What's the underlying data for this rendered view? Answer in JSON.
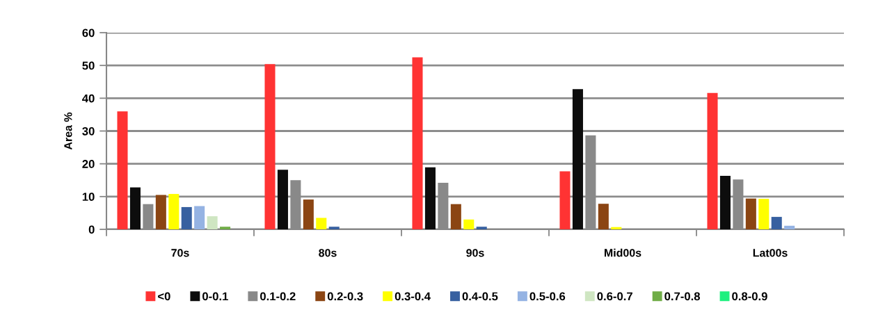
{
  "chart_data": {
    "type": "bar",
    "ylabel": "Area %",
    "categories": [
      "70s",
      "80s",
      "90s",
      "Mid00s",
      "Lat00s"
    ],
    "series": [
      {
        "name": "<0",
        "color": "#ff3333",
        "values": [
          36,
          50.4,
          52.5,
          17.7,
          41.6
        ]
      },
      {
        "name": "0-0.1",
        "color": "#0d0d0d",
        "values": [
          12.8,
          18.2,
          18.9,
          42.8,
          16.3
        ]
      },
      {
        "name": "0.1-0.2",
        "color": "#898989",
        "values": [
          7.7,
          15,
          14.2,
          28.7,
          15.2
        ]
      },
      {
        "name": "0.2-0.3",
        "color": "#8b4513",
        "values": [
          10.5,
          9.1,
          7.7,
          7.8,
          9.4
        ]
      },
      {
        "name": "0.3-0.4",
        "color": "#ffff00",
        "values": [
          10.8,
          3.5,
          3,
          0.7,
          9.3
        ]
      },
      {
        "name": "0.4-0.5",
        "color": "#3760a0",
        "values": [
          6.8,
          0.8,
          0.8,
          0,
          3.8
        ]
      },
      {
        "name": "0.5-0.6",
        "color": "#95b3e3",
        "values": [
          7.1,
          0,
          0,
          0,
          1.1
        ]
      },
      {
        "name": "0.6-0.7",
        "color": "#cfe6c2",
        "values": [
          4,
          0,
          0,
          0,
          0
        ]
      },
      {
        "name": "0.7-0.8",
        "color": "#70ad47",
        "values": [
          0.8,
          0,
          0,
          0,
          0
        ]
      },
      {
        "name": "0.8-0.9",
        "color": "#1ff07f",
        "values": [
          0,
          0,
          0,
          0,
          0
        ]
      }
    ],
    "ylim": [
      0,
      60
    ],
    "yticks": [
      0,
      10,
      20,
      30,
      40,
      50,
      60
    ],
    "grid": "y",
    "legend": "bottom"
  }
}
